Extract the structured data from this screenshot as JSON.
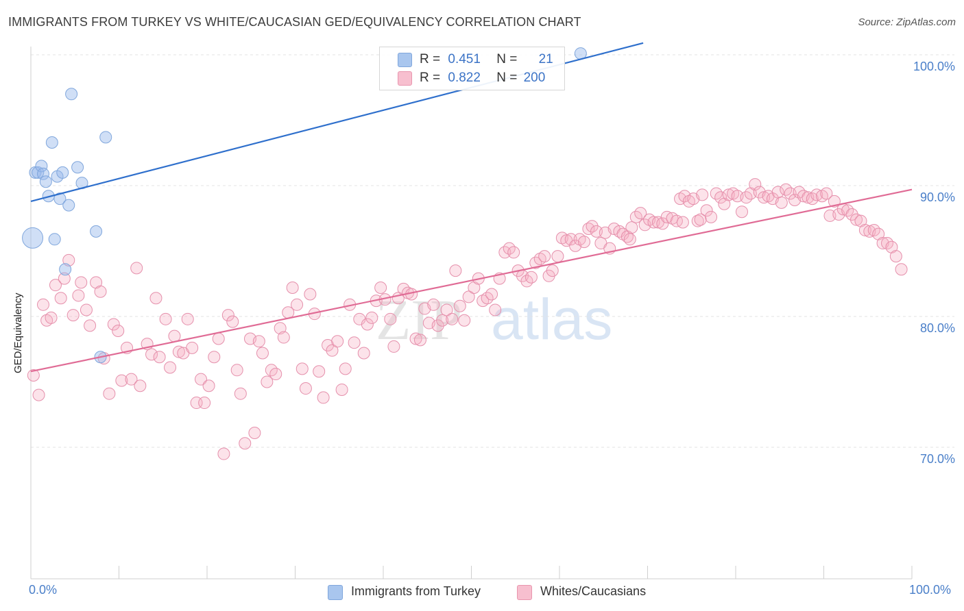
{
  "title": "IMMIGRANTS FROM TURKEY VS WHITE/CAUCASIAN GED/EQUIVALENCY CORRELATION CHART",
  "source": "Source: ZipAtlas.com",
  "watermark": {
    "zip": "ZIP",
    "atlas": "atlas"
  },
  "legend": {
    "r_label": "R =",
    "n_label": "N =",
    "rows": [
      {
        "r": "0.451",
        "n": "21",
        "color": "#a9c6ee",
        "border": "#7fa6dc"
      },
      {
        "r": "0.822",
        "n": "200",
        "color": "#f7bfcf",
        "border": "#e995ae"
      }
    ]
  },
  "bottom_legend": [
    {
      "label": "Immigrants from Turkey",
      "color": "#a9c6ee",
      "border": "#7fa6dc"
    },
    {
      "label": "Whites/Caucasians",
      "color": "#f7bfcf",
      "border": "#e995ae"
    }
  ],
  "colors": {
    "blue_line": "#2e6fcc",
    "pink_line": "#e06b95",
    "blue_fill": "rgba(150,185,235,0.45)",
    "blue_stroke": "#7fa6dc",
    "pink_fill": "rgba(245,175,195,0.35)",
    "pink_stroke": "#e58fab",
    "tick_text": "#4a7fc9"
  },
  "chart_data": {
    "type": "scatter",
    "title": "IMMIGRANTS FROM TURKEY VS WHITE/CAUCASIAN GED/EQUIVALENCY CORRELATION CHART",
    "xlabel": "",
    "ylabel": "GED/Equivalency",
    "xlim": [
      0,
      100
    ],
    "ylim": [
      60,
      101
    ],
    "x_tick_labels": [
      "0.0%",
      "100.0%"
    ],
    "y_ticks": [
      {
        "value": 100,
        "label": "100.0%"
      },
      {
        "value": 90,
        "label": "90.0%"
      },
      {
        "value": 80,
        "label": "80.0%"
      },
      {
        "value": 70,
        "label": "70.0%"
      }
    ],
    "series": [
      {
        "name": "Immigrants from Turkey",
        "R": 0.451,
        "N": 21,
        "trend": {
          "x": [
            0,
            69.5
          ],
          "y": [
            88.8,
            100.9
          ]
        },
        "points": [
          {
            "x": 0.2,
            "y": 86.0,
            "big": true
          },
          {
            "x": 0.5,
            "y": 91.0
          },
          {
            "x": 0.8,
            "y": 91.0
          },
          {
            "x": 1.2,
            "y": 91.5
          },
          {
            "x": 1.4,
            "y": 90.9
          },
          {
            "x": 1.7,
            "y": 90.3
          },
          {
            "x": 2.0,
            "y": 89.2
          },
          {
            "x": 2.4,
            "y": 93.3
          },
          {
            "x": 2.7,
            "y": 85.9
          },
          {
            "x": 3.0,
            "y": 90.7
          },
          {
            "x": 3.3,
            "y": 89.0
          },
          {
            "x": 3.6,
            "y": 91.0
          },
          {
            "x": 3.9,
            "y": 83.6
          },
          {
            "x": 4.3,
            "y": 88.5
          },
          {
            "x": 4.6,
            "y": 97.0
          },
          {
            "x": 5.3,
            "y": 91.4
          },
          {
            "x": 5.8,
            "y": 90.2
          },
          {
            "x": 7.4,
            "y": 86.5
          },
          {
            "x": 7.9,
            "y": 76.9
          },
          {
            "x": 8.5,
            "y": 93.7
          },
          {
            "x": 62.4,
            "y": 100.1
          }
        ]
      },
      {
        "name": "Whites/Caucasians",
        "R": 0.822,
        "N": 200,
        "trend": {
          "x": [
            0,
            100
          ],
          "y": [
            75.8,
            89.7
          ]
        },
        "points": [
          {
            "x": 0.3,
            "y": 75.5
          },
          {
            "x": 0.9,
            "y": 74.0
          },
          {
            "x": 1.4,
            "y": 80.9
          },
          {
            "x": 1.8,
            "y": 79.7
          },
          {
            "x": 2.3,
            "y": 79.9
          },
          {
            "x": 2.8,
            "y": 82.4
          },
          {
            "x": 3.4,
            "y": 81.4
          },
          {
            "x": 3.8,
            "y": 82.9
          },
          {
            "x": 4.3,
            "y": 84.3
          },
          {
            "x": 4.8,
            "y": 80.1
          },
          {
            "x": 5.4,
            "y": 81.6
          },
          {
            "x": 5.7,
            "y": 82.6
          },
          {
            "x": 6.3,
            "y": 80.5
          },
          {
            "x": 6.7,
            "y": 79.3
          },
          {
            "x": 7.4,
            "y": 82.6
          },
          {
            "x": 7.9,
            "y": 81.9
          },
          {
            "x": 8.3,
            "y": 76.8
          },
          {
            "x": 8.9,
            "y": 74.1
          },
          {
            "x": 9.4,
            "y": 79.4
          },
          {
            "x": 9.9,
            "y": 78.9
          },
          {
            "x": 10.3,
            "y": 75.1
          },
          {
            "x": 10.9,
            "y": 77.6
          },
          {
            "x": 11.4,
            "y": 75.2
          },
          {
            "x": 12.0,
            "y": 83.7
          },
          {
            "x": 12.4,
            "y": 74.7
          },
          {
            "x": 13.2,
            "y": 77.9
          },
          {
            "x": 13.7,
            "y": 77.1
          },
          {
            "x": 14.2,
            "y": 81.4
          },
          {
            "x": 14.6,
            "y": 76.9
          },
          {
            "x": 15.3,
            "y": 79.8
          },
          {
            "x": 15.8,
            "y": 76.1
          },
          {
            "x": 16.3,
            "y": 78.5
          },
          {
            "x": 16.8,
            "y": 77.3
          },
          {
            "x": 17.3,
            "y": 77.2
          },
          {
            "x": 17.8,
            "y": 79.8
          },
          {
            "x": 18.3,
            "y": 77.6
          },
          {
            "x": 18.8,
            "y": 73.4
          },
          {
            "x": 19.3,
            "y": 75.2
          },
          {
            "x": 19.7,
            "y": 73.4
          },
          {
            "x": 20.2,
            "y": 74.7
          },
          {
            "x": 20.8,
            "y": 76.9
          },
          {
            "x": 21.3,
            "y": 78.3
          },
          {
            "x": 21.9,
            "y": 69.5
          },
          {
            "x": 22.4,
            "y": 80.1
          },
          {
            "x": 22.9,
            "y": 79.6
          },
          {
            "x": 23.4,
            "y": 75.9
          },
          {
            "x": 23.8,
            "y": 74.1
          },
          {
            "x": 24.3,
            "y": 70.3
          },
          {
            "x": 24.9,
            "y": 78.3
          },
          {
            "x": 25.4,
            "y": 71.1
          },
          {
            "x": 25.9,
            "y": 78.1
          },
          {
            "x": 26.3,
            "y": 77.2
          },
          {
            "x": 26.8,
            "y": 75.0
          },
          {
            "x": 27.3,
            "y": 75.9
          },
          {
            "x": 27.8,
            "y": 75.6
          },
          {
            "x": 28.3,
            "y": 79.1
          },
          {
            "x": 28.7,
            "y": 78.4
          },
          {
            "x": 29.2,
            "y": 80.3
          },
          {
            "x": 29.7,
            "y": 82.2
          },
          {
            "x": 30.2,
            "y": 80.9
          },
          {
            "x": 30.8,
            "y": 76.0
          },
          {
            "x": 31.2,
            "y": 74.5
          },
          {
            "x": 31.7,
            "y": 81.7
          },
          {
            "x": 32.2,
            "y": 80.2
          },
          {
            "x": 32.7,
            "y": 75.8
          },
          {
            "x": 33.2,
            "y": 73.8
          },
          {
            "x": 33.7,
            "y": 77.8
          },
          {
            "x": 34.2,
            "y": 77.4
          },
          {
            "x": 34.8,
            "y": 78.1
          },
          {
            "x": 35.3,
            "y": 74.4
          },
          {
            "x": 35.7,
            "y": 76.0
          },
          {
            "x": 36.2,
            "y": 80.9
          },
          {
            "x": 36.7,
            "y": 78.0
          },
          {
            "x": 37.3,
            "y": 79.8
          },
          {
            "x": 37.8,
            "y": 77.2
          },
          {
            "x": 38.2,
            "y": 79.4
          },
          {
            "x": 38.7,
            "y": 79.9
          },
          {
            "x": 39.2,
            "y": 81.2
          },
          {
            "x": 39.7,
            "y": 82.2
          },
          {
            "x": 40.2,
            "y": 81.3
          },
          {
            "x": 40.8,
            "y": 79.8
          },
          {
            "x": 41.2,
            "y": 77.7
          },
          {
            "x": 41.7,
            "y": 81.4
          },
          {
            "x": 42.3,
            "y": 82.1
          },
          {
            "x": 42.8,
            "y": 81.8
          },
          {
            "x": 43.2,
            "y": 81.7
          },
          {
            "x": 43.7,
            "y": 78.3
          },
          {
            "x": 44.2,
            "y": 78.2
          },
          {
            "x": 44.7,
            "y": 80.6
          },
          {
            "x": 45.2,
            "y": 79.5
          },
          {
            "x": 45.7,
            "y": 80.9
          },
          {
            "x": 46.2,
            "y": 79.3
          },
          {
            "x": 46.7,
            "y": 79.7
          },
          {
            "x": 47.2,
            "y": 80.5
          },
          {
            "x": 47.8,
            "y": 79.8
          },
          {
            "x": 48.2,
            "y": 83.5
          },
          {
            "x": 48.7,
            "y": 80.8
          },
          {
            "x": 49.2,
            "y": 79.7
          },
          {
            "x": 49.7,
            "y": 81.5
          },
          {
            "x": 50.3,
            "y": 82.2
          },
          {
            "x": 50.8,
            "y": 82.9
          },
          {
            "x": 51.3,
            "y": 81.2
          },
          {
            "x": 51.8,
            "y": 81.4
          },
          {
            "x": 52.3,
            "y": 81.7
          },
          {
            "x": 52.7,
            "y": 80.5
          },
          {
            "x": 53.2,
            "y": 82.9
          },
          {
            "x": 53.8,
            "y": 84.9
          },
          {
            "x": 54.3,
            "y": 85.2
          },
          {
            "x": 54.8,
            "y": 84.9
          },
          {
            "x": 55.3,
            "y": 83.5
          },
          {
            "x": 55.8,
            "y": 83.1
          },
          {
            "x": 56.3,
            "y": 82.7
          },
          {
            "x": 56.8,
            "y": 83.0
          },
          {
            "x": 57.3,
            "y": 84.1
          },
          {
            "x": 57.8,
            "y": 84.4
          },
          {
            "x": 58.3,
            "y": 84.6
          },
          {
            "x": 58.8,
            "y": 83.1
          },
          {
            "x": 59.2,
            "y": 83.5
          },
          {
            "x": 59.8,
            "y": 84.6
          },
          {
            "x": 60.3,
            "y": 86.0
          },
          {
            "x": 60.8,
            "y": 85.8
          },
          {
            "x": 61.3,
            "y": 85.9
          },
          {
            "x": 61.8,
            "y": 85.4
          },
          {
            "x": 62.3,
            "y": 85.9
          },
          {
            "x": 62.8,
            "y": 85.7
          },
          {
            "x": 63.3,
            "y": 86.7
          },
          {
            "x": 63.7,
            "y": 86.9
          },
          {
            "x": 64.2,
            "y": 86.5
          },
          {
            "x": 64.7,
            "y": 85.6
          },
          {
            "x": 65.2,
            "y": 86.4
          },
          {
            "x": 65.7,
            "y": 85.2
          },
          {
            "x": 66.2,
            "y": 86.7
          },
          {
            "x": 66.8,
            "y": 86.5
          },
          {
            "x": 67.2,
            "y": 86.3
          },
          {
            "x": 67.7,
            "y": 86.1
          },
          {
            "x": 68.2,
            "y": 86.8
          },
          {
            "x": 68.7,
            "y": 87.6
          },
          {
            "x": 69.2,
            "y": 87.9
          },
          {
            "x": 69.7,
            "y": 87.0
          },
          {
            "x": 70.2,
            "y": 87.4
          },
          {
            "x": 70.7,
            "y": 87.2
          },
          {
            "x": 71.2,
            "y": 87.2
          },
          {
            "x": 71.7,
            "y": 87.1
          },
          {
            "x": 72.2,
            "y": 87.6
          },
          {
            "x": 72.8,
            "y": 87.5
          },
          {
            "x": 73.3,
            "y": 87.3
          },
          {
            "x": 73.7,
            "y": 89.0
          },
          {
            "x": 74.2,
            "y": 89.2
          },
          {
            "x": 74.7,
            "y": 88.8
          },
          {
            "x": 75.2,
            "y": 89.0
          },
          {
            "x": 75.7,
            "y": 87.3
          },
          {
            "x": 76.2,
            "y": 89.3
          },
          {
            "x": 76.7,
            "y": 88.1
          },
          {
            "x": 77.2,
            "y": 87.6
          },
          {
            "x": 77.8,
            "y": 89.4
          },
          {
            "x": 78.3,
            "y": 89.1
          },
          {
            "x": 78.7,
            "y": 88.6
          },
          {
            "x": 79.2,
            "y": 89.3
          },
          {
            "x": 79.7,
            "y": 89.4
          },
          {
            "x": 80.2,
            "y": 89.2
          },
          {
            "x": 80.7,
            "y": 88.0
          },
          {
            "x": 81.2,
            "y": 89.1
          },
          {
            "x": 81.7,
            "y": 89.4
          },
          {
            "x": 82.2,
            "y": 90.1
          },
          {
            "x": 82.7,
            "y": 89.5
          },
          {
            "x": 83.2,
            "y": 89.1
          },
          {
            "x": 83.7,
            "y": 89.2
          },
          {
            "x": 84.2,
            "y": 89.0
          },
          {
            "x": 84.8,
            "y": 89.5
          },
          {
            "x": 85.2,
            "y": 88.7
          },
          {
            "x": 85.7,
            "y": 89.7
          },
          {
            "x": 86.2,
            "y": 89.4
          },
          {
            "x": 86.7,
            "y": 88.9
          },
          {
            "x": 87.2,
            "y": 89.5
          },
          {
            "x": 87.7,
            "y": 89.2
          },
          {
            "x": 88.2,
            "y": 89.1
          },
          {
            "x": 88.7,
            "y": 89.0
          },
          {
            "x": 89.2,
            "y": 89.3
          },
          {
            "x": 89.8,
            "y": 89.2
          },
          {
            "x": 90.3,
            "y": 89.4
          },
          {
            "x": 90.7,
            "y": 87.7
          },
          {
            "x": 91.2,
            "y": 88.8
          },
          {
            "x": 91.7,
            "y": 87.8
          },
          {
            "x": 92.2,
            "y": 88.2
          },
          {
            "x": 92.7,
            "y": 88.1
          },
          {
            "x": 93.2,
            "y": 87.8
          },
          {
            "x": 93.7,
            "y": 87.4
          },
          {
            "x": 94.2,
            "y": 87.3
          },
          {
            "x": 94.7,
            "y": 86.6
          },
          {
            "x": 95.2,
            "y": 86.5
          },
          {
            "x": 95.7,
            "y": 86.6
          },
          {
            "x": 96.2,
            "y": 86.3
          },
          {
            "x": 96.7,
            "y": 85.6
          },
          {
            "x": 97.2,
            "y": 85.6
          },
          {
            "x": 97.7,
            "y": 85.3
          },
          {
            "x": 98.2,
            "y": 84.6
          },
          {
            "x": 98.8,
            "y": 83.6
          },
          {
            "x": 76.0,
            "y": 87.4
          },
          {
            "x": 74.0,
            "y": 87.2
          },
          {
            "x": 68.0,
            "y": 85.9
          }
        ]
      }
    ]
  }
}
